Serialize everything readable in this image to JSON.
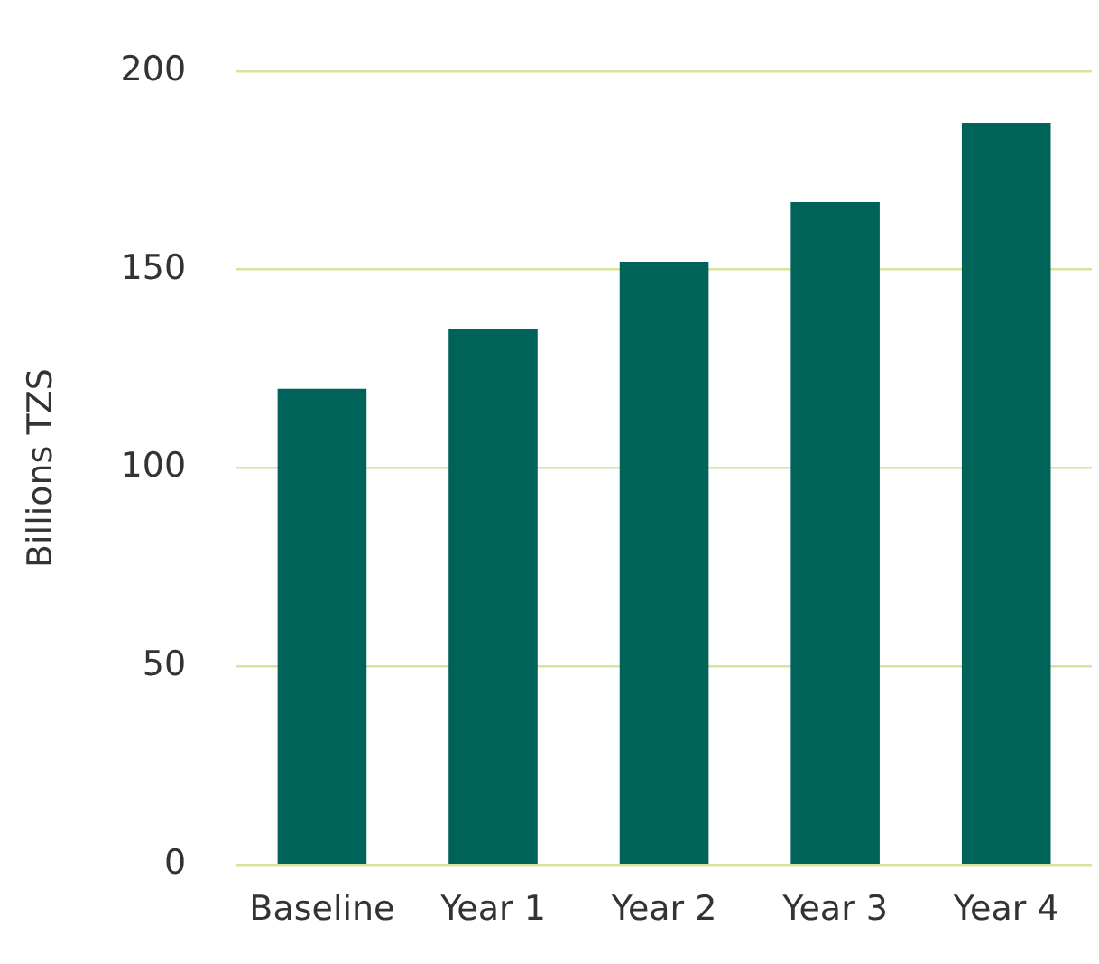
{
  "chart_data": {
    "type": "bar",
    "ylabel": "Billions TZS",
    "categories": [
      "Baseline",
      "Year 1",
      "Year 2",
      "Year 3",
      "Year 4"
    ],
    "values": [
      120,
      135,
      152,
      167,
      187
    ],
    "color": "#00635a",
    "ylim": [
      0,
      200
    ],
    "yticks": [
      0,
      50,
      100,
      150,
      200
    ],
    "grid": "y",
    "legend": false
  }
}
